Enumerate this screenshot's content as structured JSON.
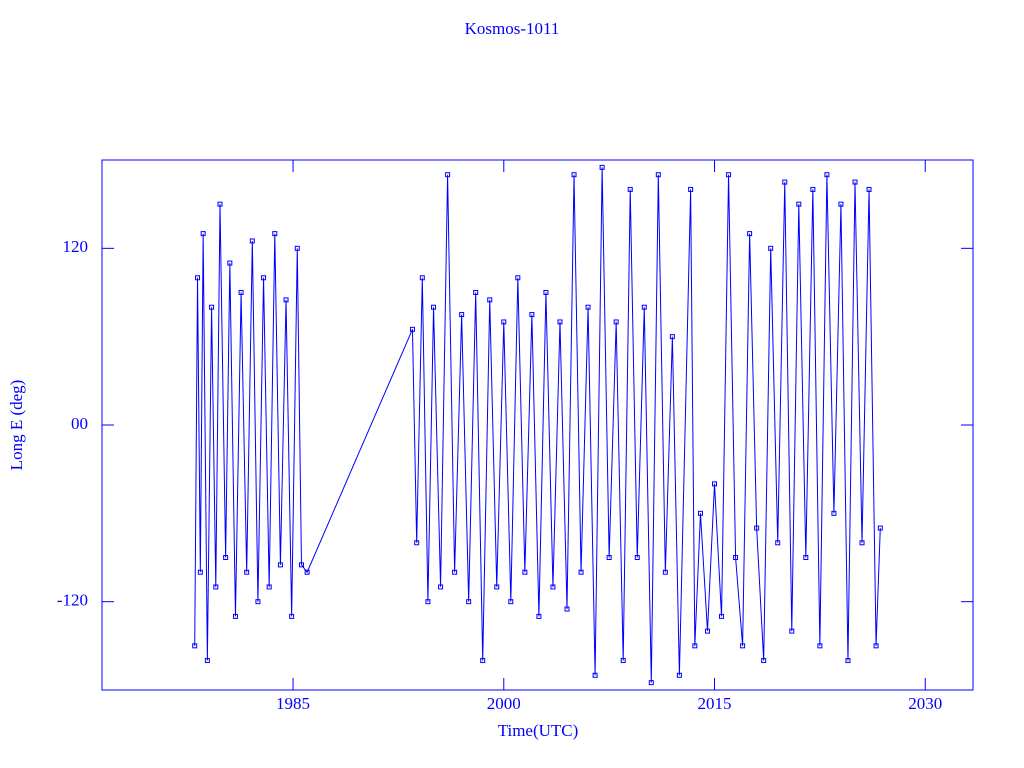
{
  "chart_data": {
    "type": "line",
    "title": "Kosmos-1011",
    "x_label": "Time(UTC)",
    "y_label": "Long E (deg)",
    "xlim": [
      1971.4,
      2033.4
    ],
    "xticks": [
      1985,
      2000,
      2015,
      2030
    ],
    "ylim": [
      -180,
      180
    ],
    "yticks": [
      120,
      {
        "value": 0,
        "label": "00"
      },
      -120
    ],
    "series": [
      {
        "name": "Kosmos-1011",
        "color": "#0000ff",
        "x": [
          1978.0,
          1978.2,
          1978.4,
          1978.6,
          1978.9,
          1979.2,
          1979.5,
          1979.8,
          1980.2,
          1980.5,
          1980.9,
          1981.3,
          1981.7,
          1982.1,
          1982.5,
          1982.9,
          1983.3,
          1983.7,
          1984.1,
          1984.5,
          1984.9,
          1985.3,
          1985.6,
          1986.0,
          1993.5,
          1993.8,
          1994.2,
          1994.6,
          1995.0,
          1995.5,
          1996.0,
          1996.5,
          1997.0,
          1997.5,
          1998.0,
          1998.5,
          1999.0,
          1999.5,
          2000.0,
          2000.5,
          2001.0,
          2001.5,
          2002.0,
          2002.5,
          2003.0,
          2003.5,
          2004.0,
          2004.5,
          2005.0,
          2005.5,
          2006.0,
          2006.5,
          2007.0,
          2007.5,
          2008.0,
          2008.5,
          2009.0,
          2009.5,
          2010.0,
          2010.5,
          2011.0,
          2011.5,
          2012.0,
          2012.5,
          2013.3,
          2013.6,
          2014.0,
          2014.5,
          2015.0,
          2015.5,
          2016.0,
          2016.5,
          2017.0,
          2017.5,
          2018.0,
          2018.5,
          2019.0,
          2019.5,
          2020.0,
          2020.5,
          2021.0,
          2021.5,
          2022.0,
          2022.5,
          2023.0,
          2023.5,
          2024.0,
          2024.5,
          2025.0,
          2025.5,
          2026.0,
          2026.5,
          2026.8
        ],
        "values": [
          -150,
          100,
          -100,
          130,
          -160,
          80,
          -110,
          150,
          -90,
          110,
          -130,
          90,
          -100,
          125,
          -120,
          100,
          -110,
          130,
          -95,
          85,
          -130,
          120,
          -95,
          -100,
          65,
          -80,
          100,
          -120,
          80,
          -110,
          170,
          -100,
          75,
          -120,
          90,
          -160,
          85,
          -110,
          70,
          -120,
          100,
          -100,
          75,
          -130,
          90,
          -110,
          70,
          -125,
          170,
          -100,
          80,
          -170,
          175,
          -90,
          70,
          -160,
          160,
          -90,
          80,
          -175,
          170,
          -100,
          60,
          -170,
          160,
          -150,
          -60,
          -140,
          -40,
          -130,
          170,
          -90,
          -150,
          130,
          -70,
          -160,
          120,
          -80,
          165,
          -140,
          150,
          -90,
          160,
          -150,
          170,
          -60,
          150,
          -160,
          165,
          -80,
          160,
          -150,
          -70
        ]
      }
    ]
  }
}
